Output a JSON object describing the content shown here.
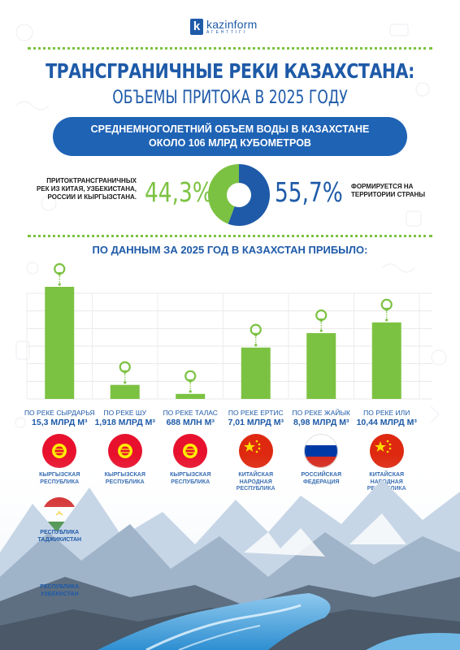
{
  "logo": {
    "name": "kazinform",
    "sub": "АГЕНТТIГI"
  },
  "header": {
    "title_line1": "ТРАНСГРАНИЧНЫЕ РЕКИ КАЗАХСТАНА:",
    "title_line2": "ОБЪЕМЫ ПРИТОКА В 2025 ГОДУ"
  },
  "banner": {
    "line1": "СРЕДНЕМНОГОЛЕТНИЙ ОБЪЕМ ВОДЫ В КАЗАХСТАНЕ",
    "line2": "ОКОЛО 106 МЛРД КУБОМЕТРОВ"
  },
  "pie": {
    "left_text": "ПРИТОКТРАНСГРАНИЧНЫХ РЕК ИЗ КИТАЯ, УЗБЕКИСТАНА, РОССИИ И КЫРГЫЗСТАНА.",
    "left_pct": "44,3%",
    "right_pct": "55,7%",
    "right_text": "ФОРМИРУЕТСЯ НА ТЕРРИТОРИИ СТРАНЫ",
    "colors": {
      "inflow": "#7cc242",
      "domestic": "#1e5aa8"
    }
  },
  "section_title": "ПО ДАННЫМ ЗА 2025 ГОД В КАЗАХСТАН ПРИБЫЛО:",
  "colors": {
    "bar": "#7cc242",
    "text": "#1e5aa8",
    "banner": "#1f63b5"
  },
  "chart_data": [
    {
      "type": "pie",
      "categories": [
        "inflow",
        "domestic"
      ],
      "values": [
        44.3,
        55.7
      ]
    },
    {
      "type": "bar",
      "categories": [
        "ПО РЕКЕ СЫРДАРЬЯ",
        "ПО РЕКЕ ШУ",
        "ПО РЕКЕ ТАЛАС",
        "ПО РЕКЕ ЕРТИС",
        "ПО РЕКЕ ЖАЙЫК",
        "ПО РЕКЕ ИЛИ"
      ],
      "values": [
        15.3,
        1.918,
        0.688,
        7.01,
        8.98,
        10.44
      ],
      "unit": "billion m3",
      "value_labels": [
        "15,3 МЛРД М³",
        "1,918 МЛРД М³",
        "688 МЛН М³",
        "7,01 МЛРД М³",
        "8,98 МЛРД М³",
        "10,44 МЛРД М³"
      ],
      "ylim": [
        0,
        15.3
      ],
      "grid": true
    }
  ],
  "countries": [
    [
      "КЫРГЫЗСКАЯ",
      "РЕСПУБЛИКА"
    ],
    [
      "КЫРГЫЗСКАЯ",
      "РЕСПУБЛИКА"
    ],
    [
      "КЫРГЫЗСКАЯ",
      "РЕСПУБЛИКА"
    ],
    [
      "КИТАЙСКАЯ",
      "НАРОДНАЯ",
      "РЕСПУБЛИКА"
    ],
    [
      "РОССИЙСКАЯ",
      "ФЕДЕРАЦИЯ"
    ],
    [
      "КИТАЙСКАЯ",
      "НАРОДНАЯ",
      "РЕСПУБЛИКА"
    ]
  ],
  "flag_icons": [
    "kyrgyzstan-flag-icon",
    "kyrgyzstan-flag-icon",
    "kyrgyzstan-flag-icon",
    "china-flag-icon",
    "russia-flag-icon",
    "china-flag-icon"
  ],
  "extra_countries": [
    {
      "lines": [
        "РЕСПУБЛИКА",
        "ТАДЖИКИСТАН"
      ],
      "icon": "tajikistan-flag-icon"
    },
    {
      "lines": [
        "РЕСПУБЛИКА",
        "УЗБЕКИСТАН"
      ],
      "icon": "uzbekistan-flag-icon"
    }
  ]
}
